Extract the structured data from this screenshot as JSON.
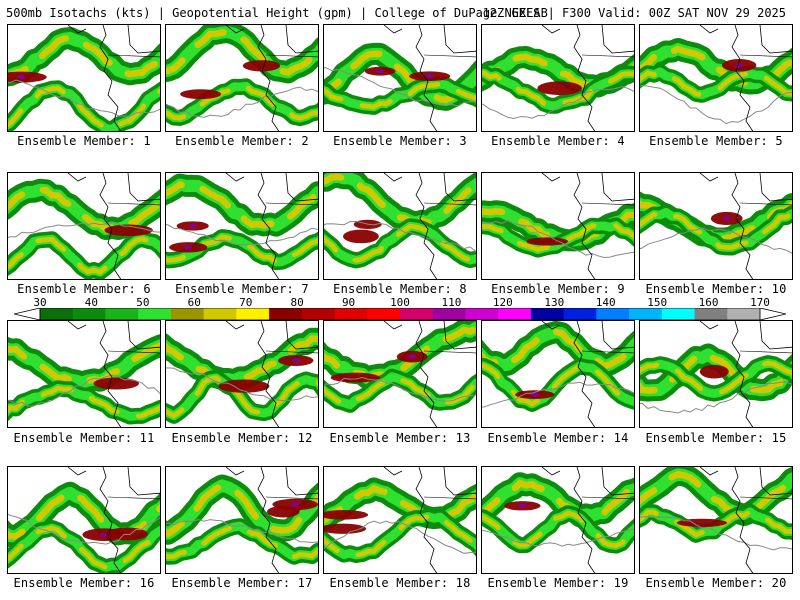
{
  "header": {
    "title_left": "500mb Isotachs (kts) | Geopotential Height (gpm) | College of DuPage NEXLAB",
    "title_right": "12Z GEFS | F300 Valid: 00Z SAT NOV 29 2025"
  },
  "legend": {
    "labels": [
      "30",
      "40",
      "50",
      "60",
      "70",
      "80",
      "90",
      "100",
      "110",
      "120",
      "130",
      "140",
      "150",
      "160",
      "170"
    ],
    "colors": [
      "#0a6e0a",
      "#0c8c0c",
      "#18b418",
      "#30e030",
      "#9a9600",
      "#d2c800",
      "#fff000",
      "#8a0000",
      "#b40000",
      "#e00000",
      "#ff0000",
      "#d4006c",
      "#a000a0",
      "#d000d0",
      "#ff00ff",
      "#0000a0",
      "#0020e0",
      "#0080ff",
      "#00b4ff",
      "#00ffff",
      "#808080",
      "#b0b0b0"
    ]
  },
  "colors": {
    "land_outline": "#000000",
    "height_contour": "#888888",
    "low": "#0c8c0c",
    "mid": "#30e030",
    "yellow": "#d2c800",
    "red": "#8a0000",
    "purple": "#8000a0"
  },
  "panels": [
    {
      "label": "Ensemble Member: 1"
    },
    {
      "label": "Ensemble Member: 2"
    },
    {
      "label": "Ensemble Member: 3"
    },
    {
      "label": "Ensemble Member: 4"
    },
    {
      "label": "Ensemble Member: 5"
    },
    {
      "label": "Ensemble Member: 6"
    },
    {
      "label": "Ensemble Member: 7"
    },
    {
      "label": "Ensemble Member: 8"
    },
    {
      "label": "Ensemble Member: 9"
    },
    {
      "label": "Ensemble Member: 10"
    },
    {
      "label": "Ensemble Member: 11"
    },
    {
      "label": "Ensemble Member: 12"
    },
    {
      "label": "Ensemble Member: 13"
    },
    {
      "label": "Ensemble Member: 14"
    },
    {
      "label": "Ensemble Member: 15"
    },
    {
      "label": "Ensemble Member: 16"
    },
    {
      "label": "Ensemble Member: 17"
    },
    {
      "label": "Ensemble Member: 18"
    },
    {
      "label": "Ensemble Member: 19"
    },
    {
      "label": "Ensemble Member: 20"
    }
  ]
}
